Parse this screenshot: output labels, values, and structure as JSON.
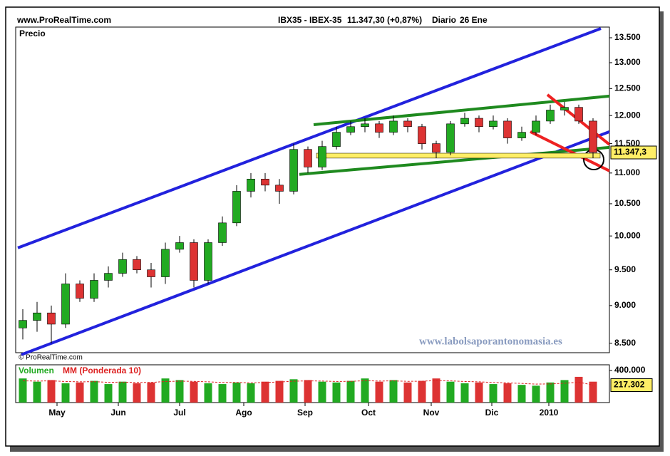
{
  "chart_data": {
    "type": "candlestick",
    "site": "www.ProRealTime.com",
    "title": "IBX35 - IBEX-35",
    "quote": "11.347,30 (+0,87%)",
    "period": "Diario",
    "date": "26 Ene",
    "panel_label": "Precio",
    "copyright": "© ProRealTime.com",
    "watermark": "www.labolsaporantonomasia.es",
    "log_scale": true,
    "xlim": [
      0,
      41.65
    ],
    "xticks": [
      {
        "value": 2.9,
        "label": "May"
      },
      {
        "value": 7.2,
        "label": "Jun"
      },
      {
        "value": 11.5,
        "label": "Jul"
      },
      {
        "value": 16,
        "label": "Ago"
      },
      {
        "value": 20.3,
        "label": "Sep"
      },
      {
        "value": 24.75,
        "label": "Oct"
      },
      {
        "value": 29.15,
        "label": "Nov"
      },
      {
        "value": 33.4,
        "label": "Dic"
      },
      {
        "value": 37.4,
        "label": "2010"
      }
    ],
    "ylim": [
      8380,
      13720
    ],
    "yticks": [
      {
        "value": 8500,
        "label": "8.500"
      },
      {
        "value": 9000,
        "label": "9.000"
      },
      {
        "value": 9500,
        "label": "9.500"
      },
      {
        "value": 10000,
        "label": "10.000"
      },
      {
        "value": 10500,
        "label": "10.500"
      },
      {
        "value": 11000,
        "label": "11.000"
      },
      {
        "value": 11500,
        "label": "11.500"
      },
      {
        "value": 12000,
        "label": "12.000"
      },
      {
        "value": 12500,
        "label": "12.500"
      },
      {
        "value": 13000,
        "label": "13.000"
      },
      {
        "value": 13500,
        "label": "13.500"
      }
    ],
    "x": [
      0.5,
      1.5,
      2.5,
      3.5,
      4.5,
      5.5,
      6.5,
      7.5,
      8.5,
      9.5,
      10.5,
      11.5,
      12.5,
      13.5,
      14.5,
      15.5,
      16.5,
      17.5,
      18.5,
      19.5,
      20.5,
      21.5,
      22.5,
      23.5,
      24.5,
      25.5,
      26.5,
      27.5,
      28.5,
      29.5,
      30.5,
      31.5,
      32.5,
      33.5,
      34.5,
      35.5,
      36.5,
      37.5,
      38.5,
      39.5,
      40.5
    ],
    "open": [
      8700,
      8800,
      8900,
      8750,
      9300,
      9100,
      9350,
      9450,
      9650,
      9500,
      9400,
      9800,
      9900,
      9350,
      9900,
      10200,
      10700,
      10900,
      10800,
      10700,
      11400,
      11100,
      11450,
      11700,
      11800,
      11850,
      11700,
      11900,
      11800,
      11500,
      11350,
      11850,
      11950,
      11800,
      11900,
      11600,
      11700,
      11900,
      12100,
      12150,
      11900
    ],
    "high": [
      8950,
      9050,
      9000,
      9450,
      9350,
      9450,
      9550,
      9750,
      9700,
      9600,
      9900,
      10000,
      9950,
      9950,
      10300,
      10800,
      11000,
      11000,
      10900,
      11500,
      11450,
      11550,
      11800,
      11900,
      11950,
      11900,
      12000,
      11950,
      11850,
      11550,
      11900,
      12050,
      12000,
      12000,
      11950,
      11800,
      12000,
      12200,
      12250,
      12200,
      11950
    ],
    "low": [
      8550,
      8650,
      8500,
      8700,
      9050,
      9050,
      9250,
      9400,
      9450,
      9250,
      9300,
      9750,
      9250,
      9300,
      9850,
      10150,
      10600,
      10700,
      10500,
      10650,
      11000,
      11050,
      11400,
      11650,
      11700,
      11600,
      11650,
      11700,
      11400,
      11250,
      11300,
      11800,
      11700,
      11750,
      11500,
      11550,
      11650,
      11850,
      12000,
      11850,
      11250
    ],
    "close": [
      8800,
      8900,
      8750,
      9300,
      9100,
      9350,
      9450,
      9650,
      9500,
      9400,
      9800,
      9900,
      9350,
      9900,
      10200,
      10700,
      10900,
      10800,
      10700,
      11400,
      11100,
      11450,
      11700,
      11800,
      11850,
      11700,
      11900,
      11800,
      11500,
      11350,
      11850,
      11950,
      11800,
      11900,
      11600,
      11700,
      11900,
      12100,
      12150,
      11900,
      11347.3
    ],
    "last_close_label": "11.347,3",
    "up_color": "#22aa22",
    "down_color": "#dd3333",
    "trendlines": [
      {
        "color": "#2222dd",
        "x": [
          0.15,
          41.05
        ],
        "y": [
          9821,
          13690
        ]
      },
      {
        "color": "#2222dd",
        "x": [
          0.4,
          41.65
        ],
        "y": [
          8355,
          11710
        ]
      },
      {
        "color": "#1f8a1f",
        "x": [
          20.9,
          41.65
        ],
        "y": [
          11835,
          12358
        ]
      },
      {
        "color": "#1f8a1f",
        "x": [
          19.9,
          41.65
        ],
        "y": [
          10977,
          11435
        ]
      },
      {
        "color": "#ee2222",
        "x": [
          37.3,
          41.65
        ],
        "y": [
          12385,
          11485
        ]
      },
      {
        "color": "#ee2222",
        "x": [
          36.1,
          41.65
        ],
        "y": [
          11710,
          11036
        ]
      }
    ],
    "support_band": {
      "color": "#ffee66",
      "x": [
        21.1,
        41
      ],
      "y": [
        11251,
        11335
      ]
    },
    "volume": {
      "label": "Volumen",
      "ma_label": "MM (Ponderada 10)",
      "y2lim": [
        0,
        470000
      ],
      "y2ticks": [
        {
          "value": 400000,
          "label": "400.000"
        }
      ],
      "values": [
        300000,
        260000,
        280000,
        240000,
        250000,
        270000,
        230000,
        260000,
        240000,
        250000,
        300000,
        280000,
        260000,
        240000,
        230000,
        250000,
        240000,
        260000,
        270000,
        290000,
        280000,
        260000,
        250000,
        270000,
        300000,
        260000,
        280000,
        250000,
        270000,
        300000,
        260000,
        240000,
        250000,
        230000,
        240000,
        220000,
        210000,
        250000,
        280000,
        320000,
        260000
      ],
      "ma_values": [
        270000,
        268000,
        270000,
        262000,
        258000,
        260000,
        252000,
        254000,
        250000,
        250000,
        262000,
        266000,
        264000,
        258000,
        250000,
        250000,
        246000,
        250000,
        256000,
        266000,
        270000,
        268000,
        262000,
        264000,
        272000,
        268000,
        270000,
        264000,
        266000,
        274000,
        270000,
        262000,
        258000,
        250000,
        246000,
        238000,
        230000,
        232000,
        240000,
        254000,
        217302
      ],
      "ma_last_label": "217.302"
    }
  }
}
